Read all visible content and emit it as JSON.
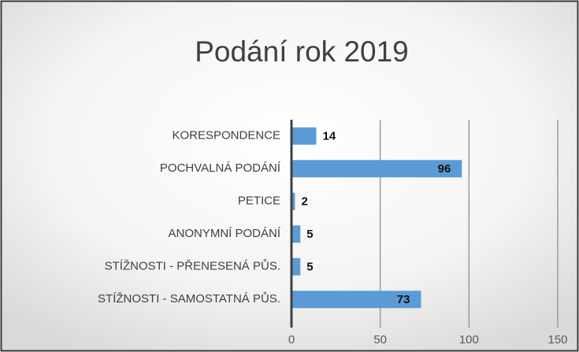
{
  "chart_data": {
    "type": "barh",
    "title": "Podání rok 2019",
    "categories": [
      "KORESPONDENCE",
      "POCHVALNÁ PODÁNÍ",
      "PETICE",
      "ANONYMNÍ PODÁNÍ",
      "STÍŽNOSTI - PŘENESENÁ PŮS.",
      "STÍŽNOSTI - SAMOSTATNÁ PŮS."
    ],
    "values": [
      14,
      96,
      2,
      5,
      5,
      73
    ],
    "color": "#5b9bd5",
    "xlim": [
      0,
      150
    ],
    "xticks": [
      0,
      50,
      100,
      150
    ],
    "grid": true
  }
}
